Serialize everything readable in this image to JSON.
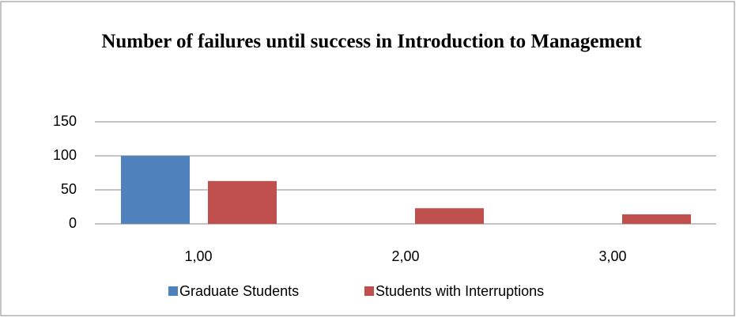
{
  "chart_data": {
    "type": "bar",
    "title": "Number of failures until success in Introduction  to Management",
    "categories": [
      "1,00",
      "2,00",
      "3,00"
    ],
    "series": [
      {
        "name": "Graduate Students",
        "color": "#4f81bd",
        "values": [
          100,
          0,
          0
        ]
      },
      {
        "name": "Students with Interruptions",
        "color": "#c0504d",
        "values": [
          63,
          23,
          14
        ]
      }
    ],
    "ylim": [
      0,
      150
    ],
    "yticks": [
      0,
      50,
      100,
      150
    ],
    "grid": true,
    "legend": "bottom"
  }
}
